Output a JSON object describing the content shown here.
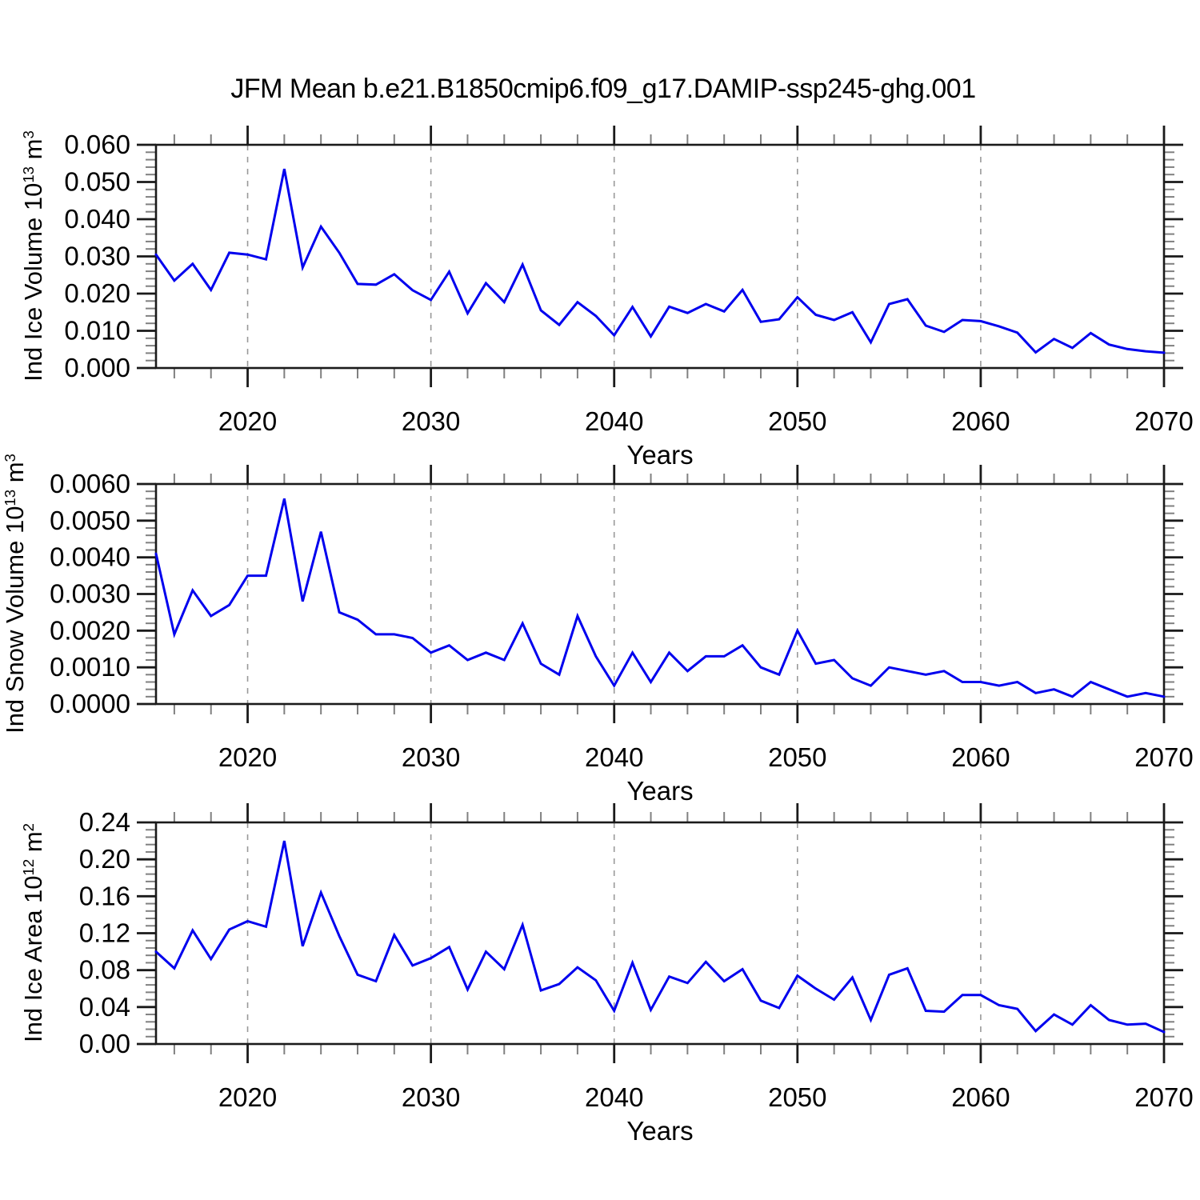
{
  "title": "JFM Mean b.e21.B1850cmip6.f09_g17.DAMIP-ssp245-ghg.001",
  "colors": {
    "line": "#0000ee",
    "grid": "#999999",
    "frame": "#1a1a1a",
    "tick_major": "#1a1a1a",
    "tick_minor": "#808080",
    "text": "#000000"
  },
  "x_axis": {
    "label": "Years",
    "start": 2015,
    "end": 2070,
    "minor_step": 2,
    "major_ticks": [
      {
        "v": 2020,
        "label": "2020"
      },
      {
        "v": 2030,
        "label": "2030"
      },
      {
        "v": 2040,
        "label": "2040"
      },
      {
        "v": 2050,
        "label": "2050"
      },
      {
        "v": 2060,
        "label": "2060"
      },
      {
        "v": 2070,
        "label": "2070"
      }
    ],
    "gridlines": [
      2020,
      2030,
      2040,
      2050,
      2060
    ]
  },
  "chart_data": [
    {
      "type": "line",
      "name": "ind-ice-volume",
      "ylabel_plain": "Ind Ice Volume 10^13 m^3",
      "ylabel_parts": [
        {
          "text": "Ind Ice Volume 10"
        },
        {
          "text": "13",
          "sup": true
        },
        {
          "text": " m"
        },
        {
          "text": "3",
          "sup": true
        }
      ],
      "xlabel": "Years",
      "ylim": [
        0,
        0.06
      ],
      "y_minor_step": 0.002,
      "y_major_ticks": [
        {
          "v": 0.06,
          "label": "0.060"
        },
        {
          "v": 0.05,
          "label": "0.050"
        },
        {
          "v": 0.04,
          "label": "0.040"
        },
        {
          "v": 0.03,
          "label": "0.030"
        },
        {
          "v": 0.02,
          "label": "0.020"
        },
        {
          "v": 0.01,
          "label": "0.010"
        },
        {
          "v": 0.0,
          "label": "0.000"
        }
      ],
      "years": [
        2015,
        2016,
        2017,
        2018,
        2019,
        2020,
        2021,
        2022,
        2023,
        2024,
        2025,
        2026,
        2027,
        2028,
        2029,
        2030,
        2031,
        2032,
        2033,
        2034,
        2035,
        2036,
        2037,
        2038,
        2039,
        2040,
        2041,
        2042,
        2043,
        2044,
        2045,
        2046,
        2047,
        2048,
        2049,
        2050,
        2051,
        2052,
        2053,
        2054,
        2055,
        2056,
        2057,
        2058,
        2059,
        2060,
        2061,
        2062,
        2063,
        2064,
        2065,
        2066,
        2067,
        2068,
        2069,
        2070
      ],
      "values": [
        0.0305,
        0.0235,
        0.028,
        0.021,
        0.031,
        0.0305,
        0.0292,
        0.0535,
        0.027,
        0.038,
        0.031,
        0.0226,
        0.0224,
        0.0252,
        0.0209,
        0.0183,
        0.0259,
        0.0147,
        0.0228,
        0.0177,
        0.0278,
        0.0155,
        0.0116,
        0.0177,
        0.014,
        0.0088,
        0.0164,
        0.0085,
        0.0165,
        0.0148,
        0.0172,
        0.0152,
        0.021,
        0.0124,
        0.0131,
        0.019,
        0.0143,
        0.0129,
        0.015,
        0.0069,
        0.0172,
        0.0185,
        0.0114,
        0.0097,
        0.0129,
        0.0126,
        0.0112,
        0.0095,
        0.0042,
        0.0078,
        0.0054,
        0.0094,
        0.0063,
        0.0051,
        0.0045,
        0.0041
      ]
    },
    {
      "type": "line",
      "name": "ind-snow-volume",
      "ylabel_plain": "Ind Snow Volume 10^13 m^3",
      "ylabel_parts": [
        {
          "text": "Ind Snow Volume 10"
        },
        {
          "text": "13",
          "sup": true
        },
        {
          "text": " m"
        },
        {
          "text": "3",
          "sup": true
        }
      ],
      "xlabel": "Years",
      "ylim": [
        0,
        0.006
      ],
      "y_minor_step": 0.0002,
      "y_major_ticks": [
        {
          "v": 0.006,
          "label": "0.0060"
        },
        {
          "v": 0.005,
          "label": "0.0050"
        },
        {
          "v": 0.004,
          "label": "0.0040"
        },
        {
          "v": 0.003,
          "label": "0.0030"
        },
        {
          "v": 0.002,
          "label": "0.0020"
        },
        {
          "v": 0.001,
          "label": "0.0010"
        },
        {
          "v": 0.0,
          "label": "0.0000"
        }
      ],
      "years": [
        2015,
        2016,
        2017,
        2018,
        2019,
        2020,
        2021,
        2022,
        2023,
        2024,
        2025,
        2026,
        2027,
        2028,
        2029,
        2030,
        2031,
        2032,
        2033,
        2034,
        2035,
        2036,
        2037,
        2038,
        2039,
        2040,
        2041,
        2042,
        2043,
        2044,
        2045,
        2046,
        2047,
        2048,
        2049,
        2050,
        2051,
        2052,
        2053,
        2054,
        2055,
        2056,
        2057,
        2058,
        2059,
        2060,
        2061,
        2062,
        2063,
        2064,
        2065,
        2066,
        2067,
        2068,
        2069,
        2070
      ],
      "values": [
        0.0041,
        0.0019,
        0.0031,
        0.0024,
        0.0027,
        0.0035,
        0.0035,
        0.0056,
        0.0028,
        0.0047,
        0.0025,
        0.0023,
        0.0019,
        0.0019,
        0.0018,
        0.0014,
        0.0016,
        0.0012,
        0.0014,
        0.0012,
        0.0022,
        0.0011,
        0.0008,
        0.0024,
        0.0013,
        0.0005,
        0.0014,
        0.0006,
        0.0014,
        0.0009,
        0.0013,
        0.0013,
        0.0016,
        0.001,
        0.0008,
        0.002,
        0.0011,
        0.0012,
        0.0007,
        0.0005,
        0.001,
        0.0009,
        0.0008,
        0.0009,
        0.0006,
        0.0006,
        0.0005,
        0.0006,
        0.0003,
        0.0004,
        0.0002,
        0.0006,
        0.0004,
        0.0002,
        0.0003,
        0.0002
      ]
    },
    {
      "type": "line",
      "name": "ind-ice-area",
      "ylabel_plain": "Ind Ice Area 10^12 m^2",
      "ylabel_parts": [
        {
          "text": "Ind Ice Area 10"
        },
        {
          "text": "12",
          "sup": true
        },
        {
          "text": " m"
        },
        {
          "text": "2",
          "sup": true
        }
      ],
      "xlabel": "Years",
      "ylim": [
        0,
        0.24
      ],
      "y_minor_step": 0.008,
      "y_major_ticks": [
        {
          "v": 0.24,
          "label": "0.24"
        },
        {
          "v": 0.2,
          "label": "0.20"
        },
        {
          "v": 0.16,
          "label": "0.16"
        },
        {
          "v": 0.12,
          "label": "0.12"
        },
        {
          "v": 0.08,
          "label": "0.08"
        },
        {
          "v": 0.04,
          "label": "0.04"
        },
        {
          "v": 0.0,
          "label": "0.00"
        }
      ],
      "years": [
        2015,
        2016,
        2017,
        2018,
        2019,
        2020,
        2021,
        2022,
        2023,
        2024,
        2025,
        2026,
        2027,
        2028,
        2029,
        2030,
        2031,
        2032,
        2033,
        2034,
        2035,
        2036,
        2037,
        2038,
        2039,
        2040,
        2041,
        2042,
        2043,
        2044,
        2045,
        2046,
        2047,
        2048,
        2049,
        2050,
        2051,
        2052,
        2053,
        2054,
        2055,
        2056,
        2057,
        2058,
        2059,
        2060,
        2061,
        2062,
        2063,
        2064,
        2065,
        2066,
        2067,
        2068,
        2069,
        2070
      ],
      "values": [
        0.1,
        0.082,
        0.123,
        0.092,
        0.124,
        0.133,
        0.127,
        0.22,
        0.106,
        0.164,
        0.117,
        0.075,
        0.068,
        0.118,
        0.085,
        0.093,
        0.105,
        0.059,
        0.1,
        0.081,
        0.129,
        0.058,
        0.065,
        0.083,
        0.069,
        0.036,
        0.088,
        0.037,
        0.073,
        0.066,
        0.089,
        0.068,
        0.081,
        0.047,
        0.039,
        0.074,
        0.06,
        0.048,
        0.072,
        0.026,
        0.075,
        0.082,
        0.036,
        0.035,
        0.053,
        0.053,
        0.042,
        0.038,
        0.014,
        0.032,
        0.021,
        0.042,
        0.026,
        0.021,
        0.022,
        0.013
      ]
    }
  ]
}
